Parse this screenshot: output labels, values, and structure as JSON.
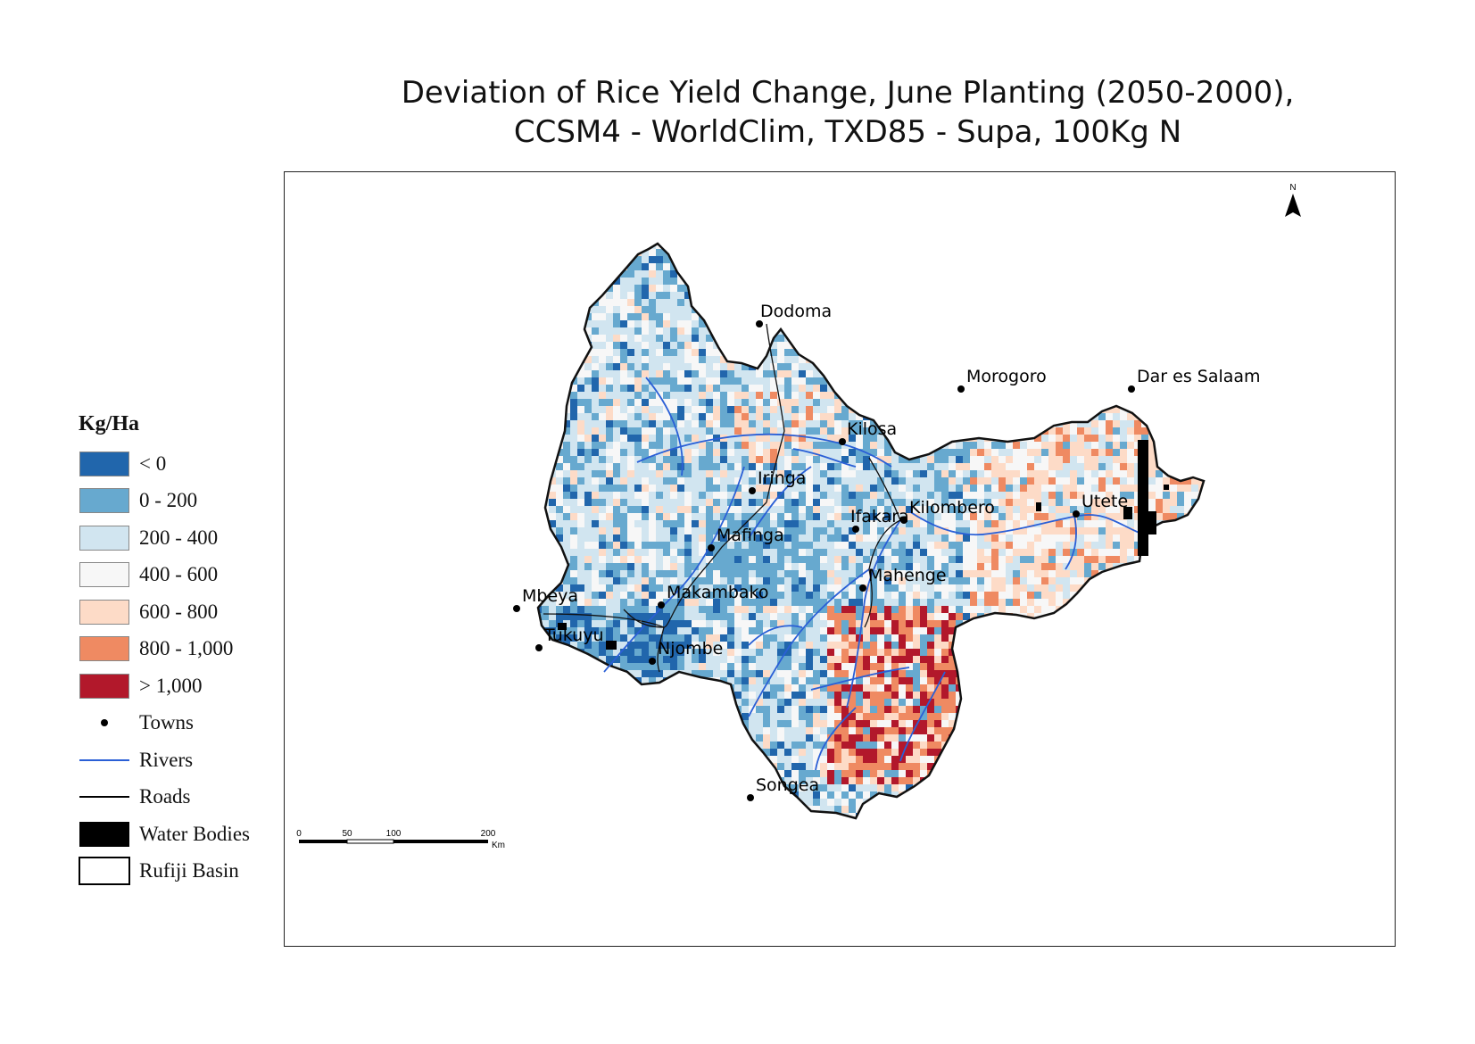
{
  "title_line1": "Deviation of Rice Yield Change, June Planting (2050-2000),",
  "title_line2": "CCSM4 - WorldClim, TXD85 - Supa, 100Kg N",
  "legend": {
    "title": "Kg/Ha",
    "classes": [
      {
        "label": "< 0",
        "color": "#2166ac"
      },
      {
        "label": "0 - 200",
        "color": "#67a9cf"
      },
      {
        "label": "200 - 400",
        "color": "#d1e5f0"
      },
      {
        "label": "400 - 600",
        "color": "#f7f7f7"
      },
      {
        "label": "600 - 800",
        "color": "#fddbc7"
      },
      {
        "label": "800 - 1,000",
        "color": "#ef8a62"
      },
      {
        "label": "> 1,000",
        "color": "#b2182b"
      }
    ],
    "towns_label": "Towns",
    "rivers_label": "Rivers",
    "roads_label": "Roads",
    "water_label": "Water Bodies",
    "basin_label": "Rufiji Basin"
  },
  "north_label": "N",
  "towns": [
    "Dodoma",
    "Morogoro",
    "Dar es Salaam",
    "Kilosa",
    "Iringa",
    "Utete",
    "Ifakara",
    "Kilombero",
    "Mafinga",
    "Mahenge",
    "Makambako",
    "Mbeya",
    "Tukuyu",
    "Njombe",
    "Songea"
  ],
  "scale_bar": {
    "ticks": [
      "0",
      "50",
      "100",
      "200"
    ],
    "unit": "Km"
  }
}
